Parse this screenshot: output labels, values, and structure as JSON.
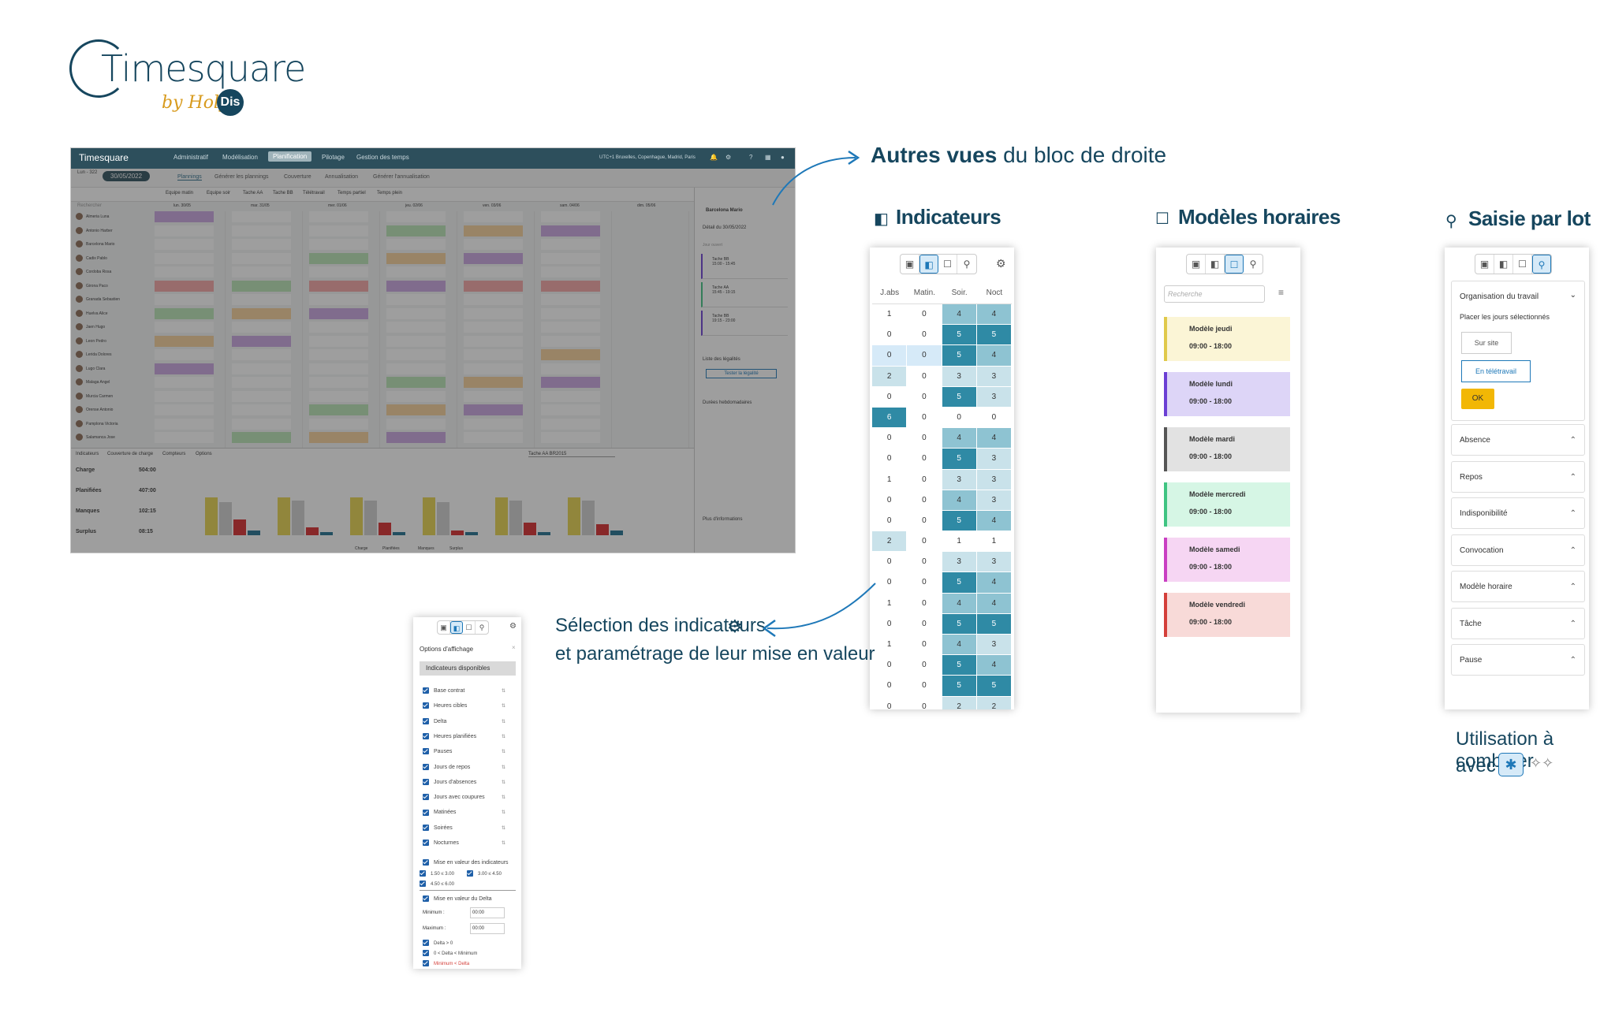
{
  "logo": {
    "title": "Timesquare",
    "by": "by Holy",
    "dis": "Dis"
  },
  "app": {
    "nav_logo": "Timesquare",
    "nav_items": [
      "Administratif",
      "Modélisation",
      "Planification",
      "Pilotage",
      "Gestion des temps"
    ],
    "nav_active": "Planification",
    "timezone": "UTC+1 Bruxelles, Copenhague, Madrid, Paris",
    "week": "Lun - 322",
    "date": "30/05/2022",
    "tabs": [
      "Plannings",
      "Générer les plannings",
      "Couverture",
      "Annualisation",
      "Générer l'annualisation"
    ],
    "filters": [
      "Equipe matin",
      "Equipe soir",
      "Tache AA",
      "Tache BB",
      "Télétravail",
      "Temps partiel",
      "Temps plein"
    ],
    "search_placeholder": "Rechercher",
    "days": [
      "lun. 30/05",
      "mar. 31/05",
      "mer. 01/06",
      "jeu. 02/06",
      "ven. 03/06",
      "sam. 04/06",
      "dim. 05/06"
    ],
    "people": [
      "Almeria Luna",
      "Antonio Harber",
      "Barcelona Mario",
      "Cadix Pablo",
      "Cordoba Rosa",
      "Girona Paco",
      "Granada Sebastien",
      "Huelva Alice",
      "Jaen Hugo",
      "Leon Pedro",
      "Lerida Dolores",
      "Lugo Clara",
      "Malaga Angel",
      "Murcia Carmen",
      "Orense Antonio",
      "Pamplona Victoria",
      "Salamanca Jose"
    ],
    "right_panel": {
      "name": "Barcelona Mario",
      "detail": "Détail du 30/05/2022",
      "jour_ouvert": "Jour ouvert",
      "tasks": [
        {
          "name": "Tache BB",
          "time": "15:00 - 15:45"
        },
        {
          "name": "Tache AA",
          "time": "15:45 - 19:15"
        },
        {
          "name": "Tache BB",
          "time": "19:15 - 23:00"
        }
      ],
      "legalites": "Liste des légalités",
      "tester": "Tester la légalité",
      "durees": "Durées hebdomadaires",
      "plus": "Plus d'informations"
    },
    "bottom": {
      "tabs": [
        "Indicateurs",
        "Couverture de charge",
        "Compteurs",
        "Options"
      ],
      "rows": [
        {
          "label": "Charge",
          "value": "504:00"
        },
        {
          "label": "Planifiées",
          "value": "407:00"
        },
        {
          "label": "Manques",
          "value": "102:15"
        },
        {
          "label": "Surplus",
          "value": "08:15"
        }
      ],
      "task_select": "Tache AA BR2015",
      "legend": [
        "Charge",
        "Planifiées",
        "Manques",
        "Surplus"
      ]
    }
  },
  "callouts": {
    "autres_bold": "Autres vues",
    "autres_rest": " du bloc de droite",
    "indicateurs": "Indicateurs",
    "modeles": "Modèles horaires",
    "saisie": "Saisie par lot",
    "selection_line1": "Sélection des indicateurs",
    "selection_line2": "et paramétrage de leur mise en valeur",
    "utilisation_line1": "Utilisation à combiner",
    "utilisation_line2": "avec"
  },
  "indicators_panel": {
    "headers": [
      "J.abs",
      "Matin.",
      "Soir.",
      "Noct"
    ],
    "rows": [
      [
        1,
        0,
        4,
        4
      ],
      [
        0,
        0,
        5,
        5
      ],
      [
        0,
        0,
        5,
        4
      ],
      [
        2,
        0,
        3,
        3
      ],
      [
        0,
        0,
        5,
        3
      ],
      [
        6,
        0,
        0,
        0
      ],
      [
        0,
        0,
        4,
        4
      ],
      [
        0,
        0,
        5,
        3
      ],
      [
        1,
        0,
        3,
        3
      ],
      [
        0,
        0,
        4,
        3
      ],
      [
        0,
        0,
        5,
        4
      ],
      [
        2,
        0,
        1,
        1
      ],
      [
        0,
        0,
        3,
        3
      ],
      [
        0,
        0,
        5,
        4
      ],
      [
        1,
        0,
        4,
        4
      ],
      [
        0,
        0,
        5,
        5
      ],
      [
        1,
        0,
        4,
        3
      ],
      [
        0,
        0,
        5,
        4
      ],
      [
        0,
        0,
        5,
        5
      ],
      [
        0,
        0,
        2,
        2
      ]
    ]
  },
  "modeles_panel": {
    "search_placeholder": "Recherche",
    "items": [
      {
        "name": "Modèle jeudi",
        "hours": "09:00 - 18:00",
        "bg": "#fbf5d6",
        "border": "#e0c94a"
      },
      {
        "name": "Modèle lundi",
        "hours": "09:00 - 18:00",
        "bg": "#ddd5f7",
        "border": "#6b3fd4"
      },
      {
        "name": "Modèle mardi",
        "hours": "09:00 - 18:00",
        "bg": "#e2e2e2",
        "border": "#555555"
      },
      {
        "name": "Modèle mercredi",
        "hours": "09:00 - 18:00",
        "bg": "#d6f6e5",
        "border": "#3fc482"
      },
      {
        "name": "Modèle samedi",
        "hours": "09:00 - 18:00",
        "bg": "#f6d6f3",
        "border": "#c93fc2"
      },
      {
        "name": "Modèle vendredi",
        "hours": "09:00 - 18:00",
        "bg": "#f8dad8",
        "border": "#d43f3a"
      }
    ]
  },
  "saisie_panel": {
    "org": "Organisation du travail",
    "placer": "Placer les jours sélectionnés",
    "sur_site": "Sur site",
    "teletravail": "En télétravail",
    "ok": "OK",
    "sections": [
      "Absence",
      "Repos",
      "Indisponibilité",
      "Convocation",
      "Modèle horaire",
      "Tâche",
      "Pause"
    ]
  },
  "options_panel": {
    "title": "Options d'affichage",
    "section": "Indicateurs disponibles",
    "items": [
      "Base contrat",
      "Heures cibles",
      "Delta",
      "Heures planifiées",
      "Pauses",
      "Jours de repos",
      "Jours d'absences",
      "Jours avec coupures",
      "Matinées",
      "Soirées",
      "Nocturnes"
    ],
    "mise_indicateurs": "Mise en valeur des indicateurs",
    "ranges": [
      "1.50 ≤ 3.00",
      "3.00 ≤ 4.50",
      "4.50 ≤ 6.00"
    ],
    "mise_delta": "Mise en valeur du Delta",
    "minimum_label": "Minimum :",
    "minimum_value": "00:00",
    "maximum_label": "Maximum :",
    "maximum_value": "00:00",
    "delta_items": [
      "Delta > 0",
      "0 < Delta < Minimum",
      "Minimum < Delta"
    ]
  },
  "colors": {
    "brand": "#16465e",
    "accent": "#1e78b8",
    "cell_dark": "#2f8aa5",
    "cell_mid": "#8ec3d2",
    "cell_light": "#c9e2ea",
    "ok": "#f2b705"
  }
}
